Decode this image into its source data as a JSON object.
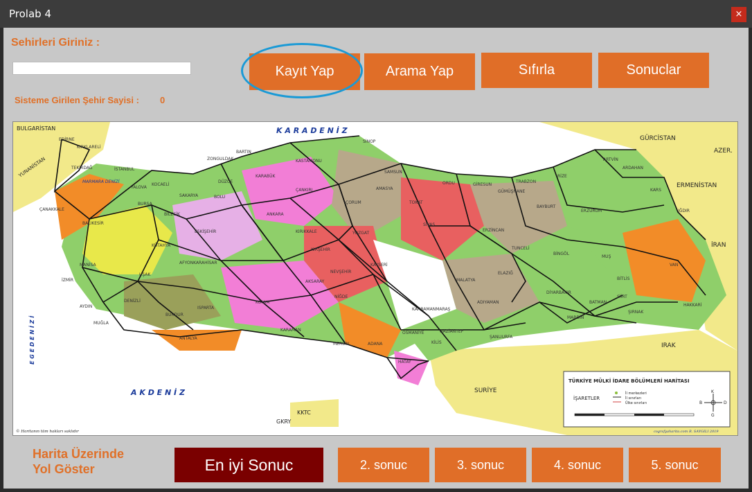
{
  "window": {
    "title": "Prolab 4",
    "close_glyph": "×"
  },
  "form": {
    "city_label": "Sehirleri Giriniz :",
    "city_input_value": "",
    "count_label": "Sisteme Girilen Şehir Sayisi :",
    "count_value": "0",
    "route_label_line1": "Harita  Üzerinde",
    "route_label_line2": "Yol Göster"
  },
  "buttons": {
    "save": "Kayıt Yap",
    "search": "Arama Yap",
    "reset": "Sıfırla",
    "results": "Sonuclar",
    "best": "En iyi Sonuc",
    "r2": "2. sonuc",
    "r3": "3. sonuc",
    "r4": "4. sonuc",
    "r5": "5. sonuc"
  },
  "map": {
    "seas": {
      "north": "K A R A D E N İ Z",
      "south": "A K D E N İ Z",
      "west": "E G E  D E N İ Z İ",
      "marmara": "MARMARA DENİZİ"
    },
    "countries": [
      "BULGARİSTAN",
      "YUNANİSTAN",
      "GÜRCİSTAN",
      "AZER.",
      "ERMENİSTAN",
      "İRAN",
      "IRAK",
      "SURİYE",
      "KKTC",
      "GKRY"
    ],
    "cities": [
      "EDİRNE",
      "KIRKLARELİ",
      "TEKİRDAĞ",
      "İSTANBUL",
      "YALOVA",
      "ÇANAKKALE",
      "BALIKESİR",
      "BURSA",
      "BİLECİK",
      "SAKARYA",
      "KOCAELİ",
      "DÜZCE",
      "BOLU",
      "ZONGULDAK",
      "BARTIN",
      "KARABÜK",
      "KASTAMONU",
      "SİNOP",
      "ÇANKIRI",
      "SAMSUN",
      "AMASYA",
      "ÇORUM",
      "ORDU",
      "GİRESUN",
      "TRABZON",
      "RİZE",
      "ARTVİN",
      "ARDAHAN",
      "KARS",
      "IĞDIR",
      "ERZURUM",
      "BAYBURT",
      "GÜMÜŞHANE",
      "TOKAT",
      "SİVAS",
      "YOZGAT",
      "KIRIKKALE",
      "ANKARA",
      "ESKİŞEHİR",
      "KÜTAHYA",
      "UŞAK",
      "MANİSA",
      "İZMİR",
      "AYDIN",
      "MUĞLA",
      "DENİZLİ",
      "AFYONKARAHİSAR",
      "ISPARTA",
      "BURDUR",
      "ANTALYA",
      "KONYA",
      "KARAMAN",
      "AKSARAY",
      "NEVŞEHİR",
      "KIRŞEHİR",
      "NİĞDE",
      "KAYSERİ",
      "ADANA",
      "MERSİN",
      "OSMANİYE",
      "HATAY",
      "KİLİS",
      "GAZİANTEP",
      "ŞANLIURFA",
      "ADIYAMAN",
      "KAHRAMANMARAŞ",
      "MALATYA",
      "ELAZIĞ",
      "TUNCELİ",
      "ERZİNCAN",
      "BİNGÖL",
      "MUŞ",
      "BİTLİS",
      "VAN",
      "HAKKARİ",
      "ŞIRNAK",
      "SİİRT",
      "BATMAN",
      "DİYARBAKIR",
      "MARDİN"
    ],
    "legend_title": "TÜRKİYE MÜLKİ İDARE BÖLÜMLERİ HARİTASI",
    "legend_key": "İŞARETLER",
    "legend_items": [
      "İl merkezleri",
      "İl sınırları",
      "Ülke sınırları"
    ],
    "compass": [
      "K",
      "B",
      "D",
      "G"
    ],
    "footer_left": "© Haritanın tüm hakları saklıdır",
    "footer_right": "cografyaharita.com  R. SAYGILI 2019"
  },
  "colors": {
    "accent": "#e06e28",
    "best": "#7a0000",
    "highlight": "#1a9ad6"
  }
}
